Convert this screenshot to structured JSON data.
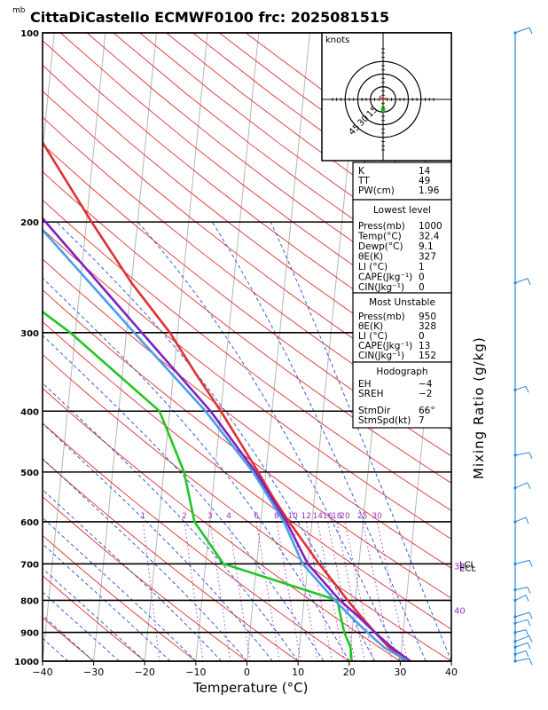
{
  "chart_data": {
    "type": "line",
    "title": "CittaDiCastello ECMWF0100  frc: 2025081515",
    "pressure_unit": "mb",
    "xlabel": "Temperature (°C)",
    "ylabel_right": "Mixing Ratio (g/kg)",
    "xlim": [
      -40,
      40
    ],
    "plim": [
      1000,
      100
    ],
    "x_ticks": [
      "−40",
      "−30",
      "−20",
      "−10",
      "0",
      "10",
      "20",
      "30",
      "40"
    ],
    "x_tick_values": [
      -40,
      -30,
      -20,
      -10,
      0,
      10,
      20,
      30,
      40
    ],
    "p_ticks": [
      "100",
      "200",
      "300",
      "400",
      "500",
      "600",
      "700",
      "800",
      "900",
      "1000"
    ],
    "p_tick_values": [
      100,
      200,
      300,
      400,
      500,
      600,
      700,
      800,
      900,
      1000
    ],
    "mixing_ratio_labels": [
      "1",
      "2",
      "3",
      "4",
      "6",
      "8",
      "10",
      "12",
      "14",
      "16",
      "18",
      "20",
      "25",
      "30"
    ],
    "mixing_ratio_values": [
      1,
      2,
      3,
      4,
      6,
      8,
      10,
      12,
      14,
      16,
      18,
      20,
      25,
      30
    ],
    "series": [
      {
        "name": "",
        "color": "#e03030",
        "points": [
          [
            1000,
            31
          ],
          [
            950,
            27.5
          ],
          [
            900,
            24.5
          ],
          [
            850,
            21.5
          ],
          [
            800,
            18.5
          ],
          [
            750,
            15.5
          ],
          [
            700,
            12.2
          ],
          [
            650,
            9
          ],
          [
            600,
            5.5
          ],
          [
            550,
            2
          ],
          [
            500,
            -1.5
          ],
          [
            450,
            -5.5
          ],
          [
            400,
            -10
          ],
          [
            350,
            -15.5
          ],
          [
            300,
            -21.5
          ],
          [
            250,
            -30
          ],
          [
            200,
            -39
          ],
          [
            150,
            -50
          ],
          [
            100,
            -63
          ]
        ]
      },
      {
        "name": "",
        "color": "#22c522",
        "points": [
          [
            1000,
            20.5
          ],
          [
            950,
            20
          ],
          [
            900,
            18.5
          ],
          [
            850,
            17.5
          ],
          [
            800,
            16.5
          ],
          [
            700,
            -6.5
          ],
          [
            600,
            -13
          ],
          [
            500,
            -16
          ],
          [
            400,
            -22
          ],
          [
            300,
            -41
          ],
          [
            250,
            -55
          ],
          [
            200,
            -64
          ],
          [
            150,
            -74
          ],
          [
            100,
            -84
          ]
        ]
      },
      {
        "name": "",
        "color": "#8020c0",
        "points": [
          [
            1000,
            32
          ],
          [
            950,
            28
          ],
          [
            900,
            24.5
          ],
          [
            850,
            21
          ],
          [
            800,
            17
          ],
          [
            700,
            10
          ],
          [
            600,
            5
          ],
          [
            500,
            -2
          ],
          [
            400,
            -12
          ],
          [
            300,
            -27
          ],
          [
            200,
            -48
          ],
          [
            150,
            -62
          ],
          [
            110,
            -75
          ]
        ]
      },
      {
        "name": "",
        "color": "#4a9ee8",
        "points": [
          [
            1000,
            31.5
          ],
          [
            950,
            26.5
          ],
          [
            900,
            23
          ],
          [
            850,
            19.5
          ],
          [
            800,
            16
          ],
          [
            700,
            9
          ],
          [
            600,
            4.5
          ],
          [
            500,
            -2.5
          ],
          [
            400,
            -13
          ],
          [
            300,
            -28.5
          ],
          [
            200,
            -50
          ],
          [
            150,
            -64
          ],
          [
            110,
            -77
          ]
        ]
      }
    ],
    "annotations": [
      {
        "text": "LCL",
        "pressure": 700
      },
      {
        "text": "ECL",
        "pressure": 710
      },
      {
        "text": "35",
        "pressure": 705
      },
      {
        "text": "40",
        "pressure": 830
      }
    ],
    "hodograph": {
      "unit_label": "knots",
      "ring_labels": [
        "15",
        "30",
        "45"
      ],
      "ring_values": [
        15,
        30,
        45
      ]
    },
    "wind_barbs_pressures": [
      100,
      250,
      370,
      470,
      530,
      600,
      700,
      770,
      800,
      850,
      870,
      900,
      930,
      950,
      975,
      1000
    ]
  },
  "panel": {
    "indices": [
      {
        "label": "K",
        "value": "14"
      },
      {
        "label": "TT",
        "value": "49"
      },
      {
        "label": "PW(cm)",
        "value": "1.96"
      }
    ],
    "lowest": {
      "header": "Lowest level",
      "rows": [
        {
          "label": "Press(mb)",
          "value": "1000"
        },
        {
          "label": "Temp(°C)",
          "value": "32.4"
        },
        {
          "label": "Dewp(°C)",
          "value": "9.1"
        },
        {
          "label": "θE(K)",
          "value": "327"
        },
        {
          "label": "LI  (°C)",
          "value": "1"
        },
        {
          "label": "CAPE(Jkg⁻¹)",
          "value": "0"
        },
        {
          "label": "CIN(Jkg⁻¹)",
          "value": "0"
        }
      ]
    },
    "unstable": {
      "header": "Most Unstable",
      "rows": [
        {
          "label": "Press(mb)",
          "value": "950"
        },
        {
          "label": "θE(K)",
          "value": "328"
        },
        {
          "label": "LI  (°C)",
          "value": "0"
        },
        {
          "label": "CAPE(Jkg⁻¹)",
          "value": "13"
        },
        {
          "label": "CIN(Jkg⁻¹)",
          "value": "152"
        }
      ]
    },
    "hodo": {
      "header": "Hodograph",
      "rows": [
        {
          "label": "EH",
          "value": "−4"
        },
        {
          "label": "SREH",
          "value": "−2"
        },
        {
          "label": "StmDir",
          "value": "66°"
        },
        {
          "label": "StmSpd(kt)",
          "value": "7"
        }
      ]
    }
  }
}
